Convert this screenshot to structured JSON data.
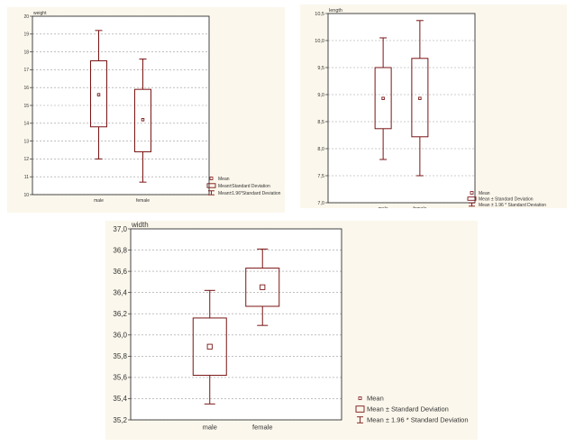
{
  "chart_data": [
    {
      "type": "boxplot",
      "title": "",
      "ylabel": "weight",
      "xlabel": "",
      "categories": [
        "male",
        "female"
      ],
      "ylim": [
        10,
        20
      ],
      "yticks": [
        10,
        11,
        12,
        13,
        14,
        15,
        16,
        17,
        18,
        19,
        20
      ],
      "ytick_labels": [
        "10",
        "11",
        "12",
        "13",
        "14",
        "15",
        "16",
        "17",
        "18",
        "19",
        "20"
      ],
      "grid": true,
      "series": [
        {
          "category": "male",
          "mean": 15.6,
          "sd_low": 13.8,
          "sd_high": 17.5,
          "ci_low": 12.0,
          "ci_high": 19.2
        },
        {
          "category": "female",
          "mean": 14.2,
          "sd_low": 12.4,
          "sd_high": 15.9,
          "ci_low": 10.7,
          "ci_high": 17.6
        }
      ],
      "legend": {
        "placement": "bottom-right",
        "entries": [
          "Mean",
          "Mean±Standard Deviation",
          "Mean±1.96*Standard Deviation"
        ]
      }
    },
    {
      "type": "boxplot",
      "title": "",
      "ylabel": "length",
      "xlabel": "",
      "categories": [
        "male",
        "female"
      ],
      "ylim": [
        7.0,
        10.5
      ],
      "yticks": [
        7.0,
        7.5,
        8.0,
        8.5,
        9.0,
        9.5,
        10.0,
        10.5
      ],
      "ytick_labels": [
        "7,0",
        "7,5",
        "8,0",
        "8,5",
        "9,0",
        "9,5",
        "10,0",
        "10,5"
      ],
      "grid": true,
      "series": [
        {
          "category": "male",
          "mean": 8.93,
          "sd_low": 8.37,
          "sd_high": 9.5,
          "ci_low": 7.8,
          "ci_high": 10.05
        },
        {
          "category": "female",
          "mean": 8.93,
          "sd_low": 8.22,
          "sd_high": 9.67,
          "ci_low": 7.5,
          "ci_high": 10.37
        }
      ],
      "legend": {
        "placement": "bottom-right",
        "entries": [
          "Mean",
          "Mean ± Standard Deviation",
          "Mean ± 1.96 * Standard Deviation"
        ]
      }
    },
    {
      "type": "boxplot",
      "title": "",
      "ylabel": "width",
      "xlabel": "",
      "categories": [
        "male",
        "female"
      ],
      "ylim": [
        35.2,
        37.0
      ],
      "yticks": [
        35.2,
        35.4,
        35.6,
        35.8,
        36.0,
        36.2,
        36.4,
        36.6,
        36.8,
        37.0
      ],
      "ytick_labels": [
        "35,2",
        "35,4",
        "35,6",
        "35,8",
        "36,0",
        "36,2",
        "36,4",
        "36,6",
        "36,8",
        "37,0"
      ],
      "grid": true,
      "series": [
        {
          "category": "male",
          "mean": 35.89,
          "sd_low": 35.62,
          "sd_high": 36.16,
          "ci_low": 35.35,
          "ci_high": 36.42
        },
        {
          "category": "female",
          "mean": 36.45,
          "sd_low": 36.27,
          "sd_high": 36.63,
          "ci_low": 36.09,
          "ci_high": 36.81
        }
      ],
      "legend": {
        "placement": "bottom-right",
        "entries": [
          "Mean",
          "Mean ± Standard Deviation",
          "Mean ± 1.96 * Standard Deviation"
        ]
      }
    }
  ],
  "colors": {
    "panel_background": "#fbf7ec",
    "plot_background": "#ffffff",
    "box": "#7a1414",
    "grid": "#9a9a9a",
    "axis": "#333333"
  }
}
